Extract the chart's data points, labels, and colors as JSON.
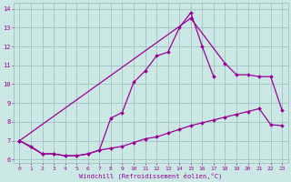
{
  "xlabel": "Windchill (Refroidissement éolien,°C)",
  "bg_color": "#cce8e4",
  "line_color": "#990099",
  "grid_color": "#99bbbb",
  "ylim": [
    5.8,
    14.3
  ],
  "xlim": [
    -0.5,
    23.5
  ],
  "yticks": [
    6,
    7,
    8,
    9,
    10,
    11,
    12,
    13,
    14
  ],
  "xticks": [
    0,
    1,
    2,
    3,
    4,
    5,
    6,
    7,
    8,
    9,
    10,
    11,
    12,
    13,
    14,
    15,
    16,
    17,
    18,
    19,
    20,
    21,
    22,
    23
  ],
  "line_A_x": [
    0,
    1,
    2,
    3,
    4,
    5,
    6,
    7,
    8,
    9,
    10,
    11,
    12,
    13,
    14,
    15,
    16,
    17,
    18,
    19,
    20,
    21,
    22,
    23
  ],
  "line_A_y": [
    7.0,
    6.7,
    6.3,
    6.3,
    6.2,
    6.2,
    6.3,
    6.5,
    6.6,
    6.7,
    6.9,
    7.1,
    7.2,
    7.4,
    7.6,
    7.8,
    7.95,
    8.1,
    8.25,
    8.4,
    8.55,
    8.7,
    7.85,
    7.8
  ],
  "line_B_x": [
    0,
    2,
    3,
    4,
    5,
    6,
    7,
    8,
    9,
    10,
    11,
    12,
    13,
    14,
    15,
    16,
    17
  ],
  "line_B_y": [
    7.0,
    6.3,
    6.3,
    6.2,
    6.2,
    6.3,
    6.5,
    8.2,
    8.5,
    10.1,
    10.7,
    11.5,
    11.7,
    13.0,
    13.8,
    12.0,
    10.4
  ],
  "line_C_x": [
    0,
    15,
    18,
    19,
    20,
    21,
    22,
    23
  ],
  "line_C_y": [
    7.0,
    13.5,
    11.1,
    10.5,
    10.5,
    10.4,
    10.4,
    8.6
  ]
}
